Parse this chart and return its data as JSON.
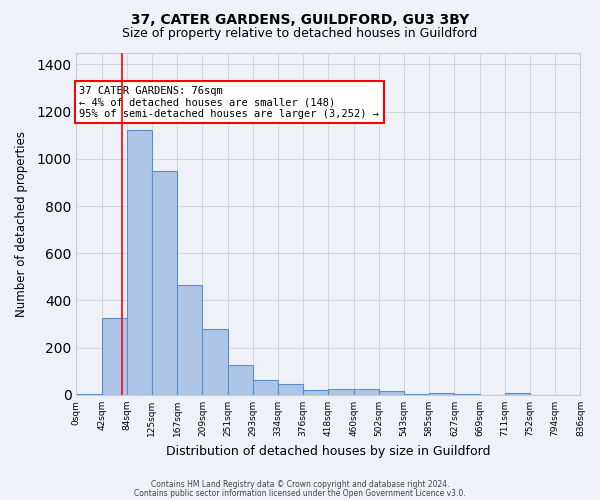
{
  "title_line1": "37, CATER GARDENS, GUILDFORD, GU3 3BY",
  "title_line2": "Size of property relative to detached houses in Guildford",
  "xlabel": "Distribution of detached houses by size in Guildford",
  "ylabel": "Number of detached properties",
  "bin_labels": [
    "0sqm",
    "42sqm",
    "84sqm",
    "125sqm",
    "167sqm",
    "209sqm",
    "251sqm",
    "293sqm",
    "334sqm",
    "376sqm",
    "418sqm",
    "460sqm",
    "502sqm",
    "543sqm",
    "585sqm",
    "627sqm",
    "669sqm",
    "711sqm",
    "752sqm",
    "794sqm",
    "836sqm"
  ],
  "bin_edges": [
    0,
    42,
    84,
    125,
    167,
    209,
    251,
    293,
    334,
    376,
    418,
    460,
    502,
    543,
    585,
    627,
    669,
    711,
    752,
    794,
    836
  ],
  "bar_heights": [
    5,
    325,
    1120,
    950,
    465,
    280,
    125,
    65,
    45,
    22,
    25,
    25,
    15,
    5,
    8,
    3,
    0,
    10,
    0,
    0
  ],
  "bar_color": "#adc6e8",
  "bar_edge_color": "#5b8fc9",
  "background_color": "#eef2f8",
  "grid_color": "#cccccc",
  "red_line_x": 76,
  "annotation_text": "37 CATER GARDENS: 76sqm\n← 4% of detached houses are smaller (148)\n95% of semi-detached houses are larger (3,252) →",
  "annotation_box_color": "white",
  "annotation_box_edge_color": "red",
  "ylim": [
    0,
    1450
  ],
  "footnote1": "Contains HM Land Registry data © Crown copyright and database right 2024.",
  "footnote2": "Contains public sector information licensed under the Open Government Licence v3.0."
}
